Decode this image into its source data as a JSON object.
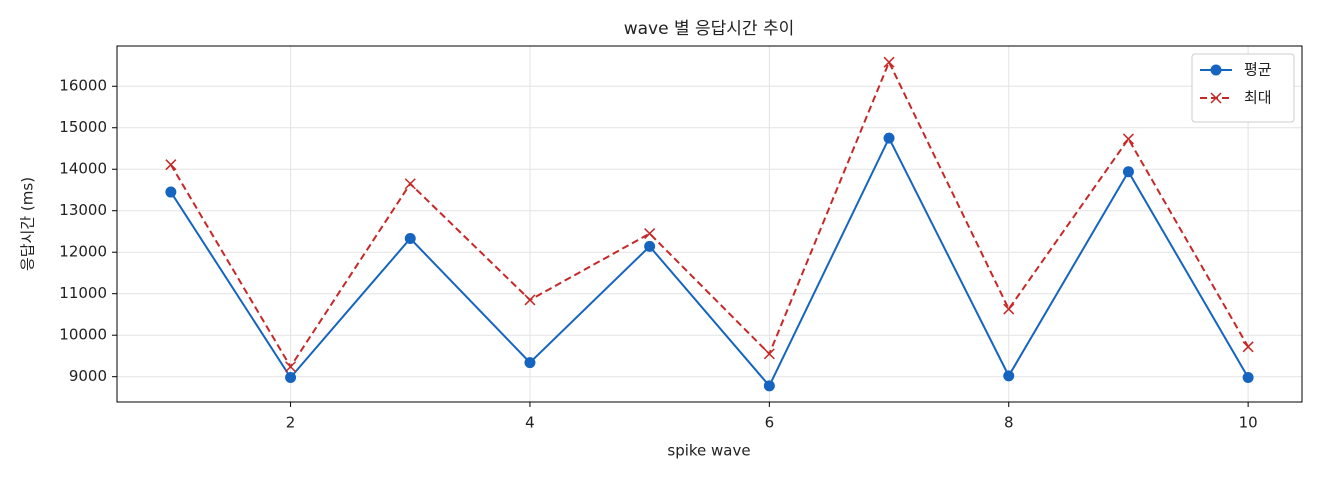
{
  "chart_data": {
    "type": "line",
    "title": "wave 별 응답시간 추이",
    "x_label": "spike wave",
    "y_label": "응답시간 (ms)",
    "x": [
      1,
      2,
      3,
      4,
      5,
      6,
      7,
      8,
      9,
      10
    ],
    "series": [
      {
        "name": "평균",
        "color": "#1565c0",
        "marker": "o",
        "linestyle": "solid",
        "values": [
          13450,
          8980,
          12330,
          9340,
          12140,
          8780,
          14750,
          9020,
          13940,
          8980
        ]
      },
      {
        "name": "최대",
        "color": "#c62828",
        "marker": "x",
        "linestyle": "dashed",
        "values": [
          14110,
          9240,
          13650,
          10850,
          12450,
          9550,
          16580,
          10630,
          14730,
          9720
        ]
      }
    ],
    "xlim": [
      0.55,
      10.45
    ],
    "xticks": [
      2,
      4,
      6,
      8,
      10
    ],
    "ylim": [
      8390,
      16970
    ],
    "yticks": [
      9000,
      10000,
      11000,
      12000,
      13000,
      14000,
      15000,
      16000
    ],
    "grid": true,
    "legend": "upper right"
  }
}
